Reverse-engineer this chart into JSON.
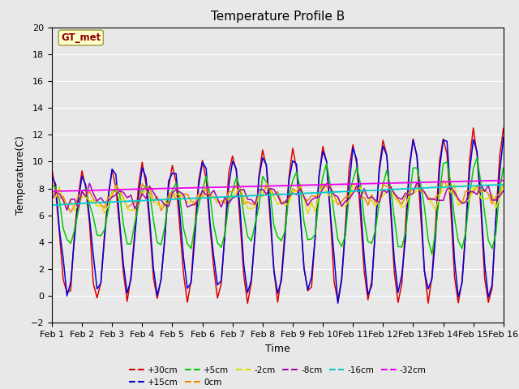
{
  "title": "Temperature Profile B",
  "xlabel": "Time",
  "ylabel": "Temperature(C)",
  "annotation": "GT_met",
  "ylim": [
    -2,
    20
  ],
  "xlim": [
    0,
    15
  ],
  "xtick_labels": [
    "Feb 1",
    "Feb 2",
    "Feb 3",
    "Feb 4",
    "Feb 5",
    "Feb 6",
    "Feb 7",
    "Feb 8",
    "Feb 9",
    "Feb 10",
    "Feb 11",
    "Feb 12",
    "Feb 13",
    "Feb 14",
    "Feb 15",
    "Feb 16"
  ],
  "ytick_values": [
    -2,
    0,
    2,
    4,
    6,
    8,
    10,
    12,
    14,
    16,
    18,
    20
  ],
  "series_order": [
    "+30cm",
    "+15cm",
    "+5cm",
    "0cm",
    "-2cm",
    "-8cm",
    "-16cm",
    "-32cm"
  ],
  "legend_row1": [
    "+30cm",
    "+15cm",
    "+5cm",
    "0cm",
    "-2cm",
    "-8cm"
  ],
  "legend_row2": [
    "-16cm",
    "-32cm"
  ],
  "series": {
    "+30cm": {
      "color": "#dd0000",
      "lw": 1.1
    },
    "+15cm": {
      "color": "#0000dd",
      "lw": 1.1
    },
    "+5cm": {
      "color": "#00cc00",
      "lw": 1.1
    },
    "0cm": {
      "color": "#ee8800",
      "lw": 1.1
    },
    "-2cm": {
      "color": "#dddd00",
      "lw": 1.1
    },
    "-8cm": {
      "color": "#aa00aa",
      "lw": 1.1
    },
    "-16cm": {
      "color": "#00cccc",
      "lw": 1.3
    },
    "-32cm": {
      "color": "#ee00ee",
      "lw": 1.3
    }
  },
  "background_color": "#e8e8e8",
  "title_fontsize": 11,
  "axis_fontsize": 9,
  "tick_fontsize": 8
}
